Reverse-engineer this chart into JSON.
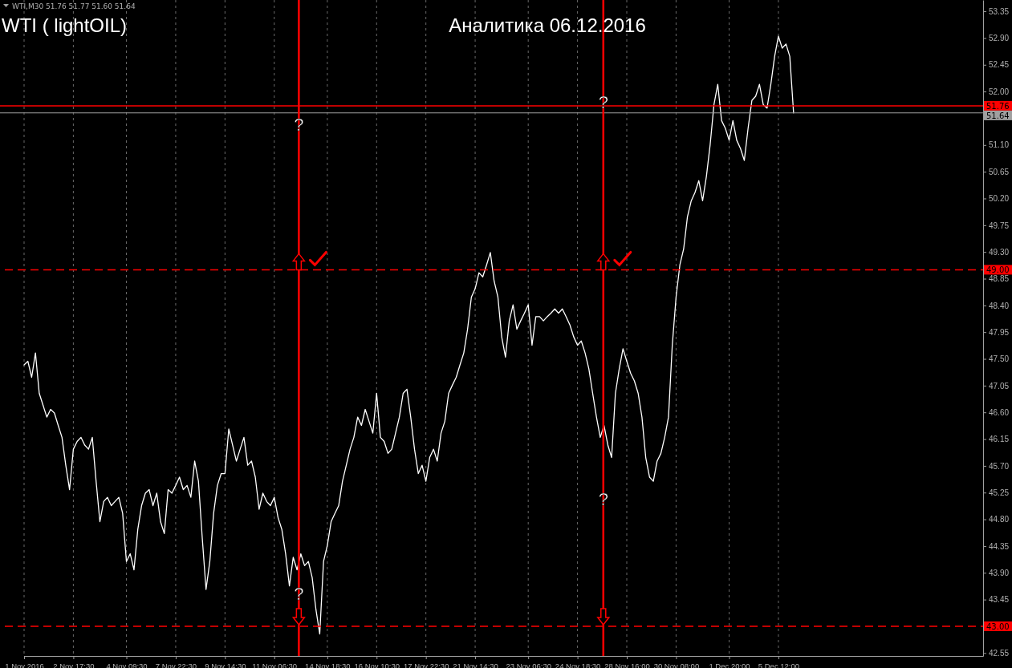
{
  "chart_data": {
    "type": "line",
    "title": "WTI ( lightOIL)",
    "subtitle": "Аналитика 06.12.2016",
    "annotations": [
      "WTI,M30  51.76 51.77 51.60 51.64",
      "?",
      "?",
      "?",
      "?"
    ],
    "categories": [
      "1 Nov 2016",
      null,
      null,
      null,
      null,
      null,
      null,
      null,
      null,
      null,
      null,
      null,
      null,
      "2 Nov 17:30",
      null,
      null,
      null,
      null,
      null,
      null,
      null,
      null,
      null,
      null,
      null,
      null,
      null,
      "4 Nov 09:30",
      null,
      null,
      null,
      null,
      null,
      null,
      null,
      null,
      null,
      null,
      null,
      null,
      "7 Nov 22:30",
      null,
      null,
      null,
      null,
      null,
      null,
      null,
      null,
      null,
      null,
      null,
      null,
      "9 Nov 14:30",
      null,
      null,
      null,
      null,
      null,
      null,
      null,
      null,
      null,
      null,
      null,
      null,
      "11 Nov 06:30",
      null,
      null,
      null,
      null,
      null,
      null,
      null,
      null,
      null,
      null,
      null,
      null,
      null,
      "14 Nov 18:30",
      null,
      null,
      null,
      null,
      null,
      null,
      null,
      null,
      null,
      null,
      null,
      null,
      "16 Nov 10:30",
      null,
      null,
      null,
      null,
      null,
      null,
      null,
      null,
      null,
      null,
      null,
      null,
      "17 Nov 22:30",
      null,
      null,
      null,
      null,
      null,
      null,
      null,
      null,
      null,
      null,
      null,
      null,
      "21 Nov 14:30",
      null,
      null,
      null,
      null,
      null,
      null,
      null,
      null,
      null,
      null,
      null,
      null,
      null,
      "23 Nov 06:30",
      null,
      null,
      null,
      null,
      null,
      null,
      null,
      null,
      null,
      null,
      null,
      null,
      "24 Nov 18:30",
      null,
      null,
      null,
      null,
      null,
      null,
      null,
      null,
      null,
      null,
      null,
      null,
      "28 Nov 16:00",
      null,
      null,
      null,
      null,
      null,
      null,
      null,
      null,
      null,
      null,
      null,
      null,
      "30 Nov 08:00",
      null,
      null,
      null,
      null,
      null,
      null,
      null,
      null,
      null,
      null,
      null,
      null,
      null,
      "1 Dec 20:00",
      null,
      null,
      null,
      null,
      null,
      null,
      null,
      null,
      null,
      null,
      null,
      null,
      "5 Dec 12:00",
      null,
      null,
      null,
      null,
      null,
      null,
      null,
      null,
      null,
      null,
      null,
      null,
      null,
      null,
      null,
      null,
      null,
      null,
      null,
      null,
      null,
      null,
      null,
      null,
      null,
      null,
      null,
      null,
      null,
      null,
      null,
      null,
      null,
      null,
      null,
      null,
      null,
      null,
      null,
      null,
      null,
      null,
      null,
      null,
      null,
      null,
      null,
      null,
      null,
      null,
      null,
      null,
      null,
      null
    ],
    "series": [
      {
        "color": "#ffffff",
        "values": [
          47.4,
          47.46,
          47.19,
          47.6,
          46.92,
          46.72,
          46.52,
          46.65,
          46.59,
          46.38,
          46.18,
          45.71,
          45.3,
          45.98,
          46.11,
          46.18,
          46.05,
          45.98,
          46.18,
          45.44,
          44.76,
          45.1,
          45.17,
          45.03,
          45.1,
          45.17,
          44.9,
          44.09,
          44.22,
          43.95,
          44.63,
          45.03,
          45.24,
          45.3,
          45.03,
          45.24,
          44.76,
          44.56,
          45.3,
          45.24,
          45.37,
          45.51,
          45.3,
          45.37,
          45.17,
          45.78,
          45.44,
          44.49,
          43.62,
          44.09,
          44.9,
          45.37,
          45.57,
          45.57,
          46.32,
          46.05,
          45.78,
          45.98,
          46.18,
          45.71,
          45.78,
          45.51,
          44.97,
          45.24,
          45.1,
          45.03,
          45.17,
          44.83,
          44.63,
          44.22,
          43.68,
          44.16,
          43.95,
          44.22,
          44.02,
          44.09,
          43.82,
          43.28,
          42.87,
          44.09,
          44.36,
          44.76,
          44.9,
          45.03,
          45.44,
          45.71,
          45.98,
          46.18,
          46.52,
          46.38,
          46.65,
          46.45,
          46.25,
          46.92,
          46.18,
          46.11,
          45.91,
          45.98,
          46.25,
          46.52,
          46.92,
          46.99,
          46.52,
          45.98,
          45.57,
          45.71,
          45.44,
          45.84,
          45.98,
          45.78,
          46.25,
          46.45,
          46.92,
          47.06,
          47.19,
          47.4,
          47.6,
          48.0,
          48.54,
          48.68,
          48.95,
          48.88,
          49.08,
          49.29,
          48.81,
          48.54,
          47.87,
          47.53,
          48.14,
          48.41,
          48.0,
          48.14,
          48.27,
          48.41,
          47.73,
          48.21,
          48.21,
          48.14,
          48.21,
          48.27,
          48.34,
          48.27,
          48.34,
          48.21,
          48.07,
          47.87,
          47.73,
          47.8,
          47.6,
          47.33,
          46.92,
          46.52,
          46.18,
          46.38,
          46.05,
          45.84,
          46.92,
          47.33,
          47.67,
          47.46,
          47.26,
          47.13,
          46.92,
          46.52,
          45.84,
          45.51,
          45.44,
          45.78,
          45.91,
          46.18,
          46.52,
          47.73,
          48.54,
          49.08,
          49.35,
          49.89,
          50.16,
          50.3,
          50.5,
          50.16,
          50.57,
          51.11,
          51.78,
          52.12,
          51.51,
          51.38,
          51.18,
          51.51,
          51.18,
          51.04,
          50.84,
          51.38,
          51.85,
          51.92,
          52.12,
          51.78,
          51.72,
          52.12,
          52.59,
          52.93,
          52.73,
          52.8,
          52.59,
          51.64,
          null,
          null,
          null,
          null,
          null,
          null,
          null,
          null,
          null,
          null,
          null,
          null,
          null,
          null,
          null,
          null,
          null,
          null,
          null,
          null,
          null,
          null,
          null,
          null,
          null,
          null,
          null,
          null,
          null,
          null,
          null,
          null,
          null,
          null,
          null,
          null,
          null,
          null,
          null,
          null,
          null,
          null,
          null,
          null,
          null,
          null,
          null,
          null,
          null,
          null
        ]
      }
    ],
    "ylim": [
      42.5,
      53.54
    ],
    "yticks": [
      {
        "value": 53.35,
        "label": "53.35"
      },
      {
        "value": 52.9,
        "label": "52.90"
      },
      {
        "value": 52.45,
        "label": "52.45"
      },
      {
        "value": 52,
        "label": "52.00"
      },
      {
        "value": 51.55,
        "label": null
      },
      {
        "value": 51.1,
        "label": "51.10"
      },
      {
        "value": 50.65,
        "label": "50.65"
      },
      {
        "value": 50.2,
        "label": "50.20"
      },
      {
        "value": 49.75,
        "label": "49.75"
      },
      {
        "value": 49.3,
        "label": "49.30"
      },
      {
        "value": 48.85,
        "label": "48.85"
      },
      {
        "value": 48.4,
        "label": "48.40"
      },
      {
        "value": 47.95,
        "label": "47.95"
      },
      {
        "value": 47.5,
        "label": "47.50"
      },
      {
        "value": 47.05,
        "label": "47.05"
      },
      {
        "value": 46.6,
        "label": "46.60"
      },
      {
        "value": 46.15,
        "label": "46.15"
      },
      {
        "value": 45.7,
        "label": "45.70"
      },
      {
        "value": 45.25,
        "label": "45.25"
      },
      {
        "value": 44.8,
        "label": "44.80"
      },
      {
        "value": 44.35,
        "label": "44.35"
      },
      {
        "value": 43.9,
        "label": "43.90"
      },
      {
        "value": 43.45,
        "label": "43.45"
      },
      {
        "value": 43,
        "label": null
      },
      {
        "value": 42.55,
        "label": "42.55"
      }
    ],
    "grid": "x",
    "ref_lines": [
      {
        "axis": "y",
        "value": 51.76,
        "label": "51.76",
        "color": "#ff0000",
        "line_style": "solid"
      },
      {
        "axis": "y",
        "value": 51.64,
        "label": "51.64",
        "color": "#a0a0a0",
        "line_style": "solid"
      },
      {
        "axis": "y",
        "value": 49,
        "label": "49.00",
        "color": "#ff0000",
        "line_style": "dashed"
      },
      {
        "axis": "y",
        "value": 43,
        "label": "43.00",
        "color": "#ff0000",
        "line_style": "dashed"
      }
    ],
    "line_style": "solid",
    "marker": "none"
  }
}
